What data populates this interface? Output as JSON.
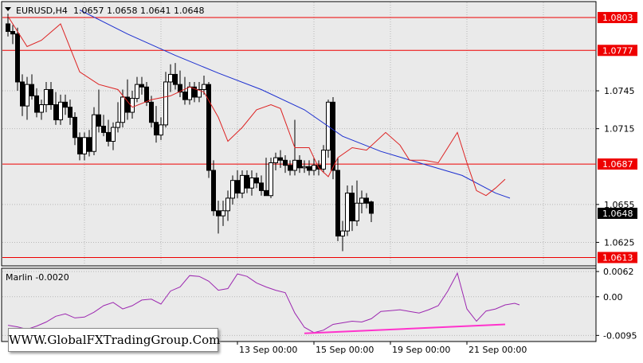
{
  "header": {
    "symbol": "EURUSD,H4",
    "prices": "1.0657 1.0658 1.0641 1.0648"
  },
  "watermark": "WWW.GlobalFXTradingGroup.Com",
  "colors": {
    "bullish": "#ffffff",
    "bearish": "#000000",
    "fast_ma": "#dd2222",
    "slow_ma": "#1c2fd0",
    "hline": "#ee0000",
    "indicator": "#9c27b0",
    "divergence": "#ff33cc"
  },
  "chart_data": [
    {
      "type": "candlestick",
      "title": "EURUSD,H4",
      "ylim": [
        1.0607,
        1.0815
      ],
      "y_ticks": [
        "1.0745",
        "1.0715",
        "1.0655",
        "1.0625"
      ],
      "y_tick_values": [
        1.0745,
        1.0715,
        1.0655,
        1.0625
      ],
      "horizontal_levels": [
        "1.0803",
        "1.0777",
        "1.0687",
        "1.0613"
      ],
      "horizontal_level_values": [
        1.0803,
        1.0777,
        1.0687,
        1.0613
      ],
      "current_price": "1.0648",
      "current_price_value": 1.0648,
      "x_ticks": [
        "13 Sep 00:00",
        "15 Sep 00:00",
        "19 Sep 00:00",
        "21 Sep 00:00"
      ],
      "x_tick_bars": [
        48,
        64,
        80,
        96
      ],
      "candles": [
        [
          1.0798,
          1.0806,
          1.0788,
          1.0792
        ],
        [
          1.0792,
          1.0797,
          1.0782,
          1.079
        ],
        [
          1.079,
          1.0795,
          1.0745,
          1.0752
        ],
        [
          1.0752,
          1.0758,
          1.0725,
          1.0733
        ],
        [
          1.0733,
          1.0756,
          1.0722,
          1.075
        ],
        [
          1.075,
          1.0758,
          1.0738,
          1.0741
        ],
        [
          1.0741,
          1.0747,
          1.0724,
          1.0728
        ],
        [
          1.0728,
          1.0738,
          1.0722,
          1.0734
        ],
        [
          1.0734,
          1.0752,
          1.0728,
          1.0746
        ],
        [
          1.0746,
          1.0752,
          1.073,
          1.0734
        ],
        [
          1.0734,
          1.0744,
          1.0718,
          1.0722
        ],
        [
          1.0722,
          1.0742,
          1.0718,
          1.0736
        ],
        [
          1.0736,
          1.0742,
          1.0726,
          1.0732
        ],
        [
          1.0732,
          1.0738,
          1.0718,
          1.0724
        ],
        [
          1.0724,
          1.0728,
          1.0702,
          1.0708
        ],
        [
          1.0708,
          1.0712,
          1.069,
          1.0695
        ],
        [
          1.0695,
          1.0712,
          1.069,
          1.0708
        ],
        [
          1.0708,
          1.0714,
          1.0693,
          1.0697
        ],
        [
          1.0697,
          1.0732,
          1.0694,
          1.0726
        ],
        [
          1.0726,
          1.0746,
          1.0712,
          1.0717
        ],
        [
          1.0717,
          1.0726,
          1.0709,
          1.0712
        ],
        [
          1.0712,
          1.0722,
          1.0701,
          1.0705
        ],
        [
          1.0705,
          1.072,
          1.0698,
          1.0716
        ],
        [
          1.0716,
          1.0736,
          1.0712,
          1.072
        ],
        [
          1.072,
          1.0746,
          1.0716,
          1.074
        ],
        [
          1.074,
          1.0754,
          1.0722,
          1.0728
        ],
        [
          1.0728,
          1.0745,
          1.0723,
          1.0739
        ],
        [
          1.0739,
          1.0756,
          1.0736,
          1.075
        ],
        [
          1.075,
          1.0756,
          1.0742,
          1.0748
        ],
        [
          1.0748,
          1.0752,
          1.0733,
          1.0736
        ],
        [
          1.0736,
          1.0741,
          1.0716,
          1.072
        ],
        [
          1.072,
          1.0733,
          1.0704,
          1.071
        ],
        [
          1.071,
          1.0724,
          1.0706,
          1.0718
        ],
        [
          1.0718,
          1.076,
          1.0716,
          1.0752
        ],
        [
          1.0752,
          1.0766,
          1.0744,
          1.0758
        ],
        [
          1.0758,
          1.0767,
          1.0746,
          1.075
        ],
        [
          1.075,
          1.0761,
          1.074,
          1.0744
        ],
        [
          1.0744,
          1.0756,
          1.0734,
          1.0738
        ],
        [
          1.0738,
          1.0752,
          1.0734,
          1.0748
        ],
        [
          1.0748,
          1.0752,
          1.0736,
          1.074
        ],
        [
          1.074,
          1.0752,
          1.0736,
          1.0746
        ],
        [
          1.0746,
          1.0757,
          1.0742,
          1.075
        ],
        [
          1.075,
          1.0752,
          1.0676,
          1.0682
        ],
        [
          1.0682,
          1.069,
          1.0646,
          1.065
        ],
        [
          1.065,
          1.0658,
          1.0632,
          1.0646
        ],
        [
          1.0646,
          1.0658,
          1.0638,
          1.065
        ],
        [
          1.065,
          1.0666,
          1.0642,
          1.066
        ],
        [
          1.066,
          1.0678,
          1.0655,
          1.0674
        ],
        [
          1.0674,
          1.0682,
          1.066,
          1.0664
        ],
        [
          1.0664,
          1.0682,
          1.066,
          1.0678
        ],
        [
          1.0678,
          1.0682,
          1.0664,
          1.0668
        ],
        [
          1.0668,
          1.0682,
          1.0662,
          1.0676
        ],
        [
          1.0676,
          1.068,
          1.0668,
          1.0672
        ],
        [
          1.0672,
          1.0678,
          1.0662,
          1.0666
        ],
        [
          1.0666,
          1.0692,
          1.0662,
          1.0662
        ],
        [
          1.0662,
          1.0692,
          1.066,
          1.0688
        ],
        [
          1.0688,
          1.0696,
          1.0682,
          1.0692
        ],
        [
          1.0692,
          1.0698,
          1.0684,
          1.069
        ],
        [
          1.069,
          1.0694,
          1.068,
          1.0686
        ],
        [
          1.0686,
          1.069,
          1.0678,
          1.0682
        ],
        [
          1.0682,
          1.0722,
          1.0678,
          1.069
        ],
        [
          1.069,
          1.0694,
          1.068,
          1.0684
        ],
        [
          1.0684,
          1.069,
          1.068,
          1.0685
        ],
        [
          1.0685,
          1.069,
          1.0678,
          1.0682
        ],
        [
          1.0682,
          1.0692,
          1.0678,
          1.0686
        ],
        [
          1.0686,
          1.069,
          1.0678,
          1.0683
        ],
        [
          1.0683,
          1.0702,
          1.068,
          1.0698
        ],
        [
          1.0698,
          1.0738,
          1.0692,
          1.0736
        ],
        [
          1.0736,
          1.074,
          1.0675,
          1.0682
        ],
        [
          1.0682,
          1.0692,
          1.0626,
          1.063
        ],
        [
          1.063,
          1.0642,
          1.0618,
          1.0634
        ],
        [
          1.0634,
          1.067,
          1.063,
          1.0664
        ],
        [
          1.0664,
          1.067,
          1.0634,
          1.0642
        ],
        [
          1.0642,
          1.0674,
          1.0638,
          1.0656
        ],
        [
          1.0656,
          1.0666,
          1.0648,
          1.066
        ],
        [
          1.066,
          1.0664,
          1.0652,
          1.0656
        ],
        [
          1.0657,
          1.0658,
          1.0641,
          1.0648
        ]
      ],
      "ma_fast": [
        [
          0,
          1.0804
        ],
        [
          4,
          1.078
        ],
        [
          7,
          1.0785
        ],
        [
          11,
          1.0798
        ],
        [
          15,
          1.076
        ],
        [
          19,
          1.075
        ],
        [
          23,
          1.0746
        ],
        [
          26,
          1.0732
        ],
        [
          30,
          1.0738
        ],
        [
          34,
          1.0741
        ],
        [
          38,
          1.0748
        ],
        [
          41,
          1.0744
        ],
        [
          44,
          1.0724
        ],
        [
          46,
          1.0705
        ],
        [
          49,
          1.0716
        ],
        [
          52,
          1.073
        ],
        [
          55,
          1.0734
        ],
        [
          57,
          1.0731
        ],
        [
          60,
          1.07
        ],
        [
          63,
          1.07
        ],
        [
          65,
          1.0684
        ],
        [
          67,
          1.0677
        ],
        [
          69,
          1.0692
        ],
        [
          72,
          1.07
        ],
        [
          75,
          1.0698
        ],
        [
          79,
          1.0712
        ],
        [
          82,
          1.0702
        ],
        [
          84,
          1.069
        ],
        [
          87,
          1.069
        ],
        [
          90,
          1.0688
        ],
        [
          92,
          1.07
        ],
        [
          94,
          1.0712
        ],
        [
          96,
          1.0688
        ],
        [
          98,
          1.0666
        ],
        [
          100,
          1.0662
        ],
        [
          102,
          1.0668
        ],
        [
          104,
          1.0675
        ]
      ],
      "ma_slow": [
        [
          15,
          1.0809
        ],
        [
          25,
          1.079
        ],
        [
          35,
          1.0773
        ],
        [
          44,
          1.0759
        ],
        [
          53,
          1.0746
        ],
        [
          62,
          1.073
        ],
        [
          70,
          1.0709
        ],
        [
          78,
          1.0697
        ],
        [
          86,
          1.0688
        ],
        [
          95,
          1.0678
        ],
        [
          102,
          1.0664
        ],
        [
          105,
          1.066
        ]
      ]
    },
    {
      "type": "line",
      "title": "Marlin -0.0020",
      "label": "Marlin -0.0020",
      "ylim": [
        -0.0108,
        0.0068
      ],
      "y_ticks": [
        "0.0062",
        "0.00",
        "-0.0095"
      ],
      "y_tick_values": [
        0.0062,
        0.0,
        -0.0095
      ],
      "values": [
        [
          0,
          -0.007
        ],
        [
          2,
          -0.0074
        ],
        [
          4,
          -0.008
        ],
        [
          6,
          -0.0072
        ],
        [
          8,
          -0.0062
        ],
        [
          10,
          -0.0048
        ],
        [
          12,
          -0.0042
        ],
        [
          14,
          -0.0052
        ],
        [
          16,
          -0.005
        ],
        [
          18,
          -0.0038
        ],
        [
          20,
          -0.0022
        ],
        [
          22,
          -0.0014
        ],
        [
          24,
          -0.003
        ],
        [
          26,
          -0.0022
        ],
        [
          28,
          -0.0008
        ],
        [
          30,
          -0.0006
        ],
        [
          32,
          -0.0018
        ],
        [
          34,
          0.0014
        ],
        [
          36,
          0.0024
        ],
        [
          38,
          0.0052
        ],
        [
          40,
          0.005
        ],
        [
          42,
          0.0038
        ],
        [
          44,
          0.0016
        ],
        [
          46,
          0.002
        ],
        [
          48,
          0.0056
        ],
        [
          50,
          0.005
        ],
        [
          52,
          0.0034
        ],
        [
          54,
          0.0024
        ],
        [
          56,
          0.0016
        ],
        [
          58,
          0.001
        ],
        [
          60,
          -0.004
        ],
        [
          62,
          -0.0075
        ],
        [
          64,
          -0.0088
        ],
        [
          66,
          -0.0082
        ],
        [
          68,
          -0.0068
        ],
        [
          70,
          -0.0064
        ],
        [
          72,
          -0.006
        ],
        [
          74,
          -0.0062
        ],
        [
          76,
          -0.0054
        ],
        [
          78,
          -0.0036
        ],
        [
          80,
          -0.0034
        ],
        [
          82,
          -0.0032
        ],
        [
          84,
          -0.0036
        ],
        [
          86,
          -0.004
        ],
        [
          88,
          -0.0032
        ],
        [
          90,
          -0.0022
        ],
        [
          92,
          0.0014
        ],
        [
          94,
          0.0058
        ],
        [
          96,
          -0.003
        ],
        [
          98,
          -0.006
        ],
        [
          100,
          -0.0035
        ],
        [
          102,
          -0.003
        ],
        [
          104,
          -0.002
        ],
        [
          106,
          -0.0016
        ],
        [
          107,
          -0.002
        ]
      ],
      "divergence_line": [
        [
          62,
          -0.009
        ],
        [
          104,
          -0.0068
        ]
      ]
    }
  ]
}
